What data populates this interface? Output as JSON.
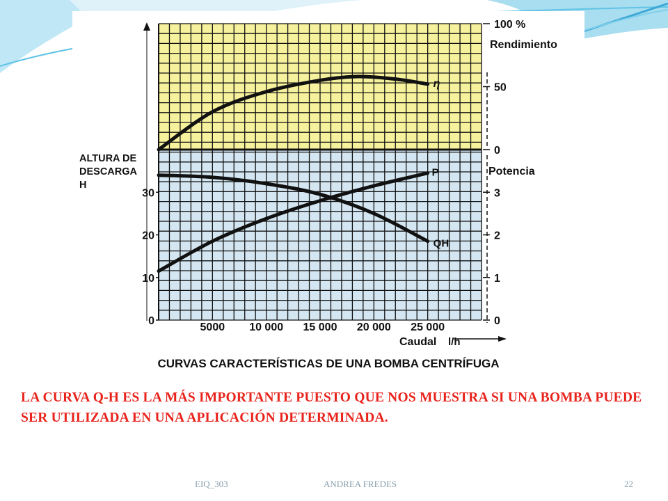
{
  "slide": {
    "body_text": "LA CURVA Q-H ES LA MÁS IMPORTANTE PUESTO QUE NOS MUESTRA SI UNA BOMBA PUEDE SER UTILIZADA EN UNA APLICACIÓN DETERMINADA.",
    "footer": {
      "left": "EIQ_303",
      "center": "ANDREA FREDES",
      "page": "22"
    },
    "colors": {
      "body_text": "#e8231c",
      "footer": "#8aa0ad",
      "decor": "#5fc4e6"
    }
  },
  "chart_data": {
    "type": "line",
    "title": "CURVAS CARACTERÍSTICAS DE UNA BOMBA CENTRÍFUGA",
    "xlabel": "Caudal",
    "xunit": "l/h",
    "xlim": [
      0,
      30000
    ],
    "x_ticks": [
      {
        "value": 5000,
        "label": "5000"
      },
      {
        "value": 10000,
        "label": "10 000"
      },
      {
        "value": 15000,
        "label": "15 000"
      },
      {
        "value": 20000,
        "label": "20 000"
      },
      {
        "value": 25000,
        "label": "25 000"
      }
    ],
    "left_axis": {
      "label_lines": [
        "ALTURA DE",
        "DESCARGA",
        "H"
      ],
      "ylim": [
        0,
        40
      ],
      "ticks": [
        {
          "value": 0,
          "label": "0"
        },
        {
          "value": 10,
          "label": "10"
        },
        {
          "value": 20,
          "label": "20"
        },
        {
          "value": 30,
          "label": "30"
        }
      ]
    },
    "right_axis_power": {
      "label": "Potencia",
      "ylim": [
        0,
        4
      ],
      "ticks": [
        {
          "value": 0,
          "label": "0"
        },
        {
          "value": 1,
          "label": "1"
        },
        {
          "value": 2,
          "label": "2"
        },
        {
          "value": 3,
          "label": "3"
        }
      ]
    },
    "right_axis_efficiency": {
      "label": "Rendimiento",
      "ylim": [
        0,
        100
      ],
      "ticks": [
        {
          "value": 0,
          "label": "0"
        },
        {
          "value": 50,
          "label": "50"
        },
        {
          "value": 100,
          "label": "100 %"
        }
      ]
    },
    "series": [
      {
        "name": "η",
        "axis": "efficiency",
        "x": [
          0,
          5000,
          10000,
          15000,
          18500,
          22000,
          25000
        ],
        "y": [
          0,
          30,
          46,
          55,
          58,
          56,
          52
        ]
      },
      {
        "name": "P",
        "axis": "power",
        "x": [
          0,
          5000,
          10000,
          15000,
          20000,
          25000
        ],
        "y": [
          1.15,
          1.85,
          2.38,
          2.8,
          3.15,
          3.45
        ]
      },
      {
        "name": "QH",
        "axis": "head",
        "x": [
          0,
          5000,
          10000,
          15000,
          20000,
          25000
        ],
        "y": [
          34,
          33.5,
          32,
          29.5,
          25,
          18.5
        ]
      }
    ],
    "regions": {
      "upper_fill": "#f6f19c",
      "lower_fill": "#d4e6f1",
      "grid": "#111111"
    },
    "grid": true
  }
}
